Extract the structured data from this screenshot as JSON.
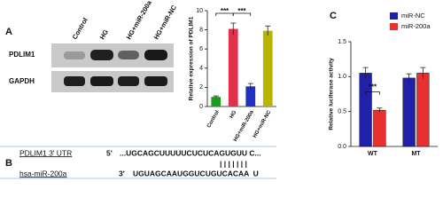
{
  "panel_labels": [
    "A",
    "B",
    "C"
  ],
  "blot": {
    "lanes": [
      "Control",
      "HG",
      "HG+miR-200a",
      "HG+miR-NC"
    ],
    "rows": [
      "PDLIM1",
      "GAPDH"
    ]
  },
  "sequence": {
    "utr_label": "PDLIM1 3' UTR",
    "utr_end": "5'",
    "utr_seq": "...UGCAGCUUUUUCUCUCAGUGUU C...",
    "pairing": "| | | | | | |",
    "mirna_label": "hsa-miR-200a",
    "mirna_end": "3'",
    "mirna_seq": "UGUAGCAAUGGUCUGUCACAA  U"
  },
  "chart_data": [
    {
      "type": "bar",
      "y_label": "Relative expression of PDLIM1",
      "categories": [
        "Control",
        "HG",
        "HG+miR-200a",
        "HG+miR-NC"
      ],
      "values": [
        1.0,
        8.1,
        2.1,
        7.9
      ],
      "errors": [
        0.1,
        0.6,
        0.3,
        0.5
      ],
      "colors": [
        "#1a9e1a",
        "#e0304a",
        "#2030c0",
        "#b8b400"
      ],
      "ylim": [
        0,
        10
      ],
      "yticks": [
        0,
        2,
        4,
        6,
        8,
        10
      ],
      "annotations": [
        "***",
        "***"
      ]
    },
    {
      "type": "bar",
      "y_label": "Relative luciferase activity",
      "categories": [
        "WT",
        "MT"
      ],
      "series": [
        {
          "name": "miR-NC",
          "color": "#2020a8",
          "values": [
            1.05,
            0.98
          ],
          "errors": [
            0.08,
            0.06
          ]
        },
        {
          "name": "miR-200a",
          "color": "#e83030",
          "values": [
            0.52,
            1.05
          ],
          "errors": [
            0.03,
            0.08
          ]
        }
      ],
      "ylim": [
        0,
        1.5
      ],
      "yticks": [
        {
          "value": 0,
          "label": "0.0"
        },
        {
          "value": 0.5,
          "label": "0.5"
        },
        {
          "value": 1,
          "label": "1.0"
        },
        {
          "value": 1.5,
          "label": "1.5"
        }
      ],
      "legend": "top-right",
      "annotations": [
        "***"
      ]
    }
  ]
}
